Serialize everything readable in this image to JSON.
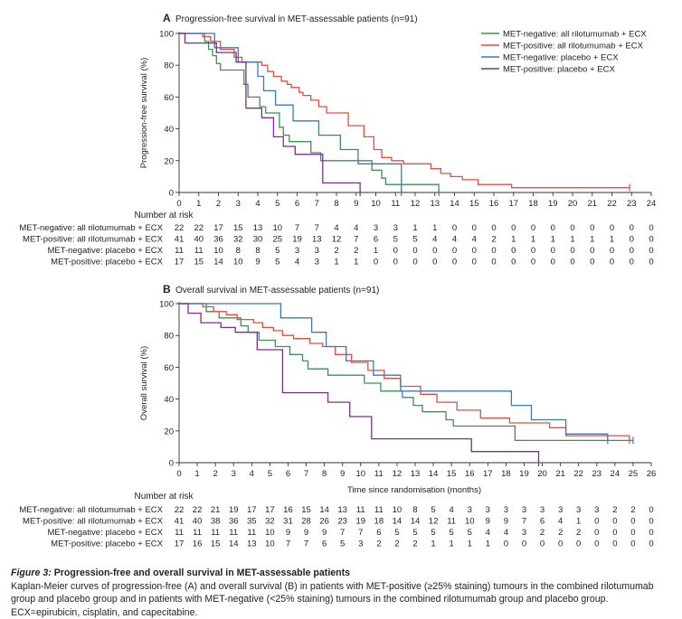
{
  "chart_data": [
    {
      "type": "line",
      "step": true,
      "panel_letter": "A",
      "title": "Progression-free survival in MET-assessable patients (n=91)",
      "ylabel": "Progression-free survival (%)",
      "xlabel": "",
      "xlim": [
        0,
        24
      ],
      "ylim": [
        0,
        100
      ],
      "x_ticks": [
        0,
        1,
        2,
        3,
        4,
        5,
        6,
        7,
        8,
        9,
        10,
        11,
        12,
        13,
        14,
        15,
        16,
        17,
        18,
        19,
        20,
        21,
        22,
        23,
        24
      ],
      "y_ticks": [
        0,
        20,
        40,
        60,
        80,
        100
      ],
      "legend_position": "top-right",
      "series": [
        {
          "name": "MET-negative: all rilotumumab + ECX",
          "color": "#3f8f56",
          "x": [
            0,
            1.3,
            1.5,
            1.7,
            1.9,
            2.1,
            3.3,
            3.5,
            4.1,
            4.4,
            5.1,
            5.3,
            5.6,
            6.7,
            7.2,
            9.8,
            10.3,
            10.5,
            10.9,
            13.2
          ],
          "y": [
            100,
            95,
            90,
            86,
            81,
            77,
            68,
            60,
            54,
            50,
            41,
            36,
            32,
            25,
            20,
            14,
            9,
            5,
            5,
            0
          ]
        },
        {
          "name": "MET-positive: all rilotumumab + ECX",
          "color": "#e84c3d",
          "x": [
            0,
            1.2,
            1.6,
            2.1,
            2.8,
            3.2,
            4.2,
            4.5,
            4.8,
            5.2,
            5.5,
            5.7,
            6.1,
            6.3,
            6.7,
            7.1,
            7.5,
            8.6,
            9.4,
            9.9,
            10.3,
            10.8,
            11.4,
            12.8,
            13.3,
            13.8,
            14.4,
            15.2,
            16.9,
            22.9
          ],
          "y": [
            100,
            98,
            95,
            90,
            85,
            82,
            80,
            76,
            73,
            70,
            68,
            66,
            63,
            61,
            58,
            54,
            50,
            42,
            35,
            27,
            22,
            20,
            18,
            15,
            12,
            10,
            8,
            5,
            3,
            3
          ]
        },
        {
          "name": "MET-negative: placebo + ECX",
          "color": "#3b78b8",
          "x": [
            0,
            1.3,
            1.8,
            3,
            4,
            4.3,
            4.9,
            5.8,
            7.1,
            8.2,
            9.1,
            11.3
          ],
          "y": [
            100,
            100,
            91,
            82,
            73,
            64,
            55,
            45,
            36,
            27,
            18,
            0
          ]
        },
        {
          "name": "MET-positive: placebo + ECX",
          "color": "#7b2f8e",
          "x": [
            0,
            0.3,
            1.9,
            2.9,
            3.4,
            4.2,
            4.8,
            5.3,
            5.9,
            7.3,
            9.2
          ],
          "y": [
            100,
            94,
            88,
            82,
            53,
            47,
            35,
            29,
            24,
            6,
            0
          ]
        }
      ],
      "number_at_risk_label": "Number at risk",
      "risk_x": [
        0,
        1,
        2,
        3,
        4,
        5,
        6,
        7,
        8,
        9,
        10,
        11,
        12,
        13,
        14,
        15,
        16,
        17,
        18,
        19,
        20,
        21,
        22,
        23,
        24
      ],
      "risk_rows": [
        {
          "label": "MET-negative: all rilotumumab + ECX",
          "values": [
            "22",
            "22",
            "17",
            "15",
            "13",
            "10",
            "7",
            "7",
            "4",
            "4",
            "3",
            "3",
            "1",
            "1",
            "0",
            "0",
            "0",
            "0",
            "0",
            "0",
            "0",
            "0",
            "0",
            "0",
            "0"
          ]
        },
        {
          "label": "MET-positive: all rilotumumab + ECX",
          "values": [
            "41",
            "40",
            "36",
            "32",
            "30",
            "25",
            "19",
            "13",
            "12",
            "7",
            "6",
            "5",
            "5",
            "4",
            "4",
            "4",
            "2",
            "1",
            "1",
            "1",
            "1",
            "1",
            "1",
            "0",
            "0"
          ]
        },
        {
          "label": "MET-negative: placebo + ECX",
          "values": [
            "11",
            "11",
            "10",
            "8",
            "8",
            "5",
            "3",
            "3",
            "2",
            "2",
            "1",
            "0",
            "0",
            "0",
            "0",
            "0",
            "0",
            "0",
            "0",
            "0",
            "0",
            "0",
            "0",
            "0",
            "0"
          ]
        },
        {
          "label": "MET-positive: placebo + ECX",
          "values": [
            "17",
            "15",
            "14",
            "10",
            "9",
            "5",
            "4",
            "3",
            "1",
            "1",
            "0",
            "0",
            "0",
            "0",
            "0",
            "0",
            "0",
            "0",
            "0",
            "0",
            "0",
            "0",
            "0",
            "0",
            "0"
          ]
        }
      ]
    },
    {
      "type": "line",
      "step": true,
      "panel_letter": "B",
      "title": "Overall survival in MET-assessable patients (n=91)",
      "ylabel": "Overall survival (%)",
      "xlabel": "Time since randomisation (months)",
      "xlim": [
        0,
        26
      ],
      "ylim": [
        0,
        100
      ],
      "x_ticks": [
        0,
        1,
        2,
        3,
        4,
        5,
        6,
        7,
        8,
        9,
        10,
        11,
        12,
        13,
        14,
        15,
        16,
        17,
        18,
        19,
        20,
        21,
        22,
        23,
        24,
        25,
        26
      ],
      "y_ticks": [
        0,
        20,
        40,
        60,
        80,
        100
      ],
      "series": [
        {
          "name": "MET-negative: all rilotumumab + ECX",
          "color": "#3f8f56",
          "x": [
            0,
            1.5,
            2.2,
            3.4,
            3.8,
            4.4,
            5.3,
            6.1,
            6.8,
            7.1,
            8.2,
            9.1,
            10.2,
            11.1,
            12.3,
            12.9,
            13.4,
            14.7,
            15.1,
            18.5,
            25
          ],
          "y": [
            100,
            95,
            91,
            86,
            82,
            77,
            73,
            68,
            64,
            59,
            55,
            55,
            50,
            45,
            41,
            36,
            32,
            27,
            23,
            14,
            14
          ]
        },
        {
          "name": "MET-positive: all rilotumumab + ECX",
          "color": "#e84c3d",
          "x": [
            0,
            1.3,
            1.9,
            2.6,
            3.2,
            4.1,
            4.6,
            5.2,
            5.7,
            6.3,
            7.2,
            7.9,
            8.6,
            9.5,
            10.4,
            11.3,
            12.2,
            13.3,
            14.2,
            15.3,
            16.6,
            18.2,
            20.4,
            21.3,
            24.8
          ],
          "y": [
            100,
            98,
            95,
            93,
            90,
            88,
            85,
            83,
            80,
            78,
            75,
            73,
            68,
            63,
            58,
            53,
            48,
            43,
            38,
            33,
            28,
            25,
            22,
            17,
            14
          ]
        },
        {
          "name": "MET-negative: placebo + ECX",
          "color": "#3b78b8",
          "x": [
            0,
            5.6,
            7.3,
            8.1,
            9.2,
            10.7,
            11.4,
            12.2,
            16.7,
            18.3,
            19.4,
            21.3,
            23.6
          ],
          "y": [
            100,
            91,
            82,
            73,
            64,
            55,
            55,
            45,
            45,
            36,
            27,
            18,
            14
          ]
        },
        {
          "name": "MET-positive: placebo + ECX",
          "color": "#7b2f8e",
          "x": [
            0,
            0.5,
            1.2,
            2.3,
            3.1,
            4.3,
            5.7,
            8.2,
            9.4,
            10.6,
            12.3,
            16.1,
            19.8
          ],
          "y": [
            100,
            94,
            88,
            85,
            82,
            71,
            44,
            38,
            29,
            15,
            15,
            7,
            0
          ]
        }
      ],
      "number_at_risk_label": "Number at risk",
      "risk_x": [
        0,
        1,
        2,
        3,
        4,
        5,
        6,
        7,
        8,
        9,
        10,
        11,
        12,
        13,
        14,
        15,
        16,
        17,
        18,
        19,
        20,
        21,
        22,
        23,
        24,
        25,
        26
      ],
      "risk_rows": [
        {
          "label": "MET-negative: all rilotumumab + ECX",
          "values": [
            "22",
            "22",
            "21",
            "19",
            "17",
            "17",
            "16",
            "15",
            "14",
            "13",
            "11",
            "11",
            "10",
            "8",
            "5",
            "4",
            "3",
            "3",
            "3",
            "3",
            "3",
            "3",
            "3",
            "3",
            "2",
            "2",
            "0"
          ]
        },
        {
          "label": "MET-positive: all rilotumumab + ECX",
          "values": [
            "41",
            "40",
            "38",
            "36",
            "35",
            "32",
            "31",
            "28",
            "26",
            "23",
            "19",
            "18",
            "14",
            "14",
            "12",
            "11",
            "10",
            "9",
            "9",
            "7",
            "6",
            "4",
            "1",
            "0",
            "0",
            "0",
            "0"
          ]
        },
        {
          "label": "MET-negative: placebo + ECX",
          "values": [
            "11",
            "11",
            "11",
            "11",
            "11",
            "10",
            "9",
            "9",
            "9",
            "7",
            "7",
            "6",
            "5",
            "5",
            "5",
            "5",
            "5",
            "4",
            "4",
            "3",
            "2",
            "2",
            "2",
            "0",
            "0",
            "0",
            "0"
          ]
        },
        {
          "label": "MET-positive: placebo + ECX",
          "values": [
            "17",
            "16",
            "15",
            "14",
            "13",
            "10",
            "7",
            "7",
            "6",
            "5",
            "3",
            "2",
            "2",
            "2",
            "1",
            "1",
            "1",
            "1",
            "0",
            "0",
            "0",
            "0",
            "0",
            "0",
            "0",
            "0",
            "0"
          ]
        }
      ]
    }
  ],
  "caption": {
    "figure_label": "Figure 3:",
    "title": "Progression-free and overall survival in MET-assessable patients",
    "text": "Kaplan-Meier curves of progression-free (A) and overall survival (B) in patients with MET-positive (≥25% staining) tumours in the combined rilotumumab group and placebo group and in patients with MET-negative (<25% staining) tumours in the combined rilotumumab group and placebo group. ECX=epirubicin, cisplatin, and capecitabine."
  }
}
